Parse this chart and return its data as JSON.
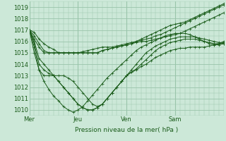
{
  "bg_color": "#cce8d8",
  "grid_color": "#99c4aa",
  "line_color": "#1a5c1a",
  "xlabel": "Pression niveau de la mer( hPa )",
  "xtick_labels": [
    "Mer",
    "Jeu",
    "Ven",
    "Sam"
  ],
  "xtick_positions": [
    0,
    60,
    120,
    180
  ],
  "xlim": [
    0,
    240
  ],
  "ylim": [
    1009.5,
    1019.5
  ],
  "yticks": [
    1010,
    1011,
    1012,
    1013,
    1014,
    1015,
    1016,
    1017,
    1018,
    1019
  ],
  "series": [
    {
      "x": [
        0,
        6,
        12,
        18,
        24,
        30,
        36,
        42,
        48,
        54,
        60,
        66,
        72,
        78,
        84,
        90,
        96,
        102,
        108,
        114,
        120,
        126,
        132,
        138,
        144,
        150,
        156,
        162,
        168,
        174,
        180,
        186,
        192,
        198,
        204,
        210,
        216,
        222,
        228,
        234,
        240
      ],
      "y": [
        1017.0,
        1016.5,
        1015.8,
        1015.2,
        1015.0,
        1015.0,
        1015.0,
        1015.0,
        1015.0,
        1015.0,
        1015.0,
        1015.1,
        1015.2,
        1015.3,
        1015.4,
        1015.5,
        1015.5,
        1015.5,
        1015.6,
        1015.7,
        1015.8,
        1015.9,
        1016.0,
        1016.1,
        1016.2,
        1016.3,
        1016.5,
        1016.6,
        1016.8,
        1017.0,
        1017.2,
        1017.4,
        1017.6,
        1017.8,
        1018.0,
        1018.2,
        1018.4,
        1018.6,
        1018.8,
        1019.0,
        1019.2
      ]
    },
    {
      "x": [
        0,
        6,
        12,
        18,
        24,
        30,
        36,
        42,
        48,
        54,
        60,
        66,
        72,
        78,
        84,
        90,
        96,
        102,
        108,
        114,
        120,
        126,
        132,
        138,
        144,
        150,
        156,
        162,
        168,
        174,
        180,
        186,
        192,
        198,
        204,
        210,
        216,
        222,
        228,
        234,
        240
      ],
      "y": [
        1017.0,
        1016.2,
        1015.5,
        1015.0,
        1015.0,
        1015.0,
        1015.0,
        1015.0,
        1015.0,
        1015.0,
        1015.0,
        1015.0,
        1015.0,
        1015.0,
        1015.0,
        1015.2,
        1015.3,
        1015.4,
        1015.5,
        1015.6,
        1015.7,
        1015.8,
        1015.9,
        1016.0,
        1016.0,
        1016.1,
        1016.2,
        1016.3,
        1016.4,
        1016.5,
        1016.6,
        1016.7,
        1016.9,
        1017.1,
        1017.3,
        1017.5,
        1017.7,
        1017.9,
        1018.1,
        1018.3,
        1018.5
      ]
    },
    {
      "x": [
        0,
        6,
        12,
        18,
        24,
        30,
        36,
        42,
        48,
        54,
        60,
        66,
        72,
        78,
        84,
        90,
        96,
        102,
        108,
        114,
        120,
        126,
        132,
        138,
        144,
        150,
        156,
        162,
        168,
        174,
        180,
        186,
        192,
        198,
        204,
        210,
        216,
        222,
        228,
        234,
        240
      ],
      "y": [
        1017.0,
        1016.0,
        1014.5,
        1014.0,
        1013.5,
        1013.0,
        1012.5,
        1012.0,
        1011.5,
        1011.0,
        1010.5,
        1010.2,
        1010.0,
        1010.0,
        1010.2,
        1010.5,
        1011.0,
        1011.5,
        1012.0,
        1012.5,
        1013.0,
        1013.5,
        1014.0,
        1014.5,
        1015.0,
        1015.3,
        1015.6,
        1015.8,
        1016.0,
        1016.2,
        1016.3,
        1016.4,
        1016.4,
        1016.4,
        1016.4,
        1016.3,
        1016.2,
        1016.1,
        1016.0,
        1015.9,
        1015.8
      ]
    },
    {
      "x": [
        0,
        6,
        12,
        18,
        24,
        30,
        36,
        42,
        48,
        54,
        60,
        66,
        72,
        78,
        84,
        90,
        96,
        102,
        108,
        114,
        120,
        126,
        132,
        138,
        144,
        150,
        156,
        162,
        168,
        174,
        180,
        186,
        192,
        198,
        204,
        210,
        216,
        222,
        228,
        234,
        240
      ],
      "y": [
        1017.0,
        1015.5,
        1013.5,
        1012.5,
        1011.8,
        1011.2,
        1010.8,
        1010.3,
        1010.0,
        1009.8,
        1010.0,
        1010.3,
        1010.8,
        1011.3,
        1011.8,
        1012.3,
        1012.8,
        1013.2,
        1013.6,
        1014.0,
        1014.4,
        1014.8,
        1015.2,
        1015.5,
        1015.7,
        1015.9,
        1016.1,
        1016.3,
        1016.5,
        1016.6,
        1016.7,
        1016.7,
        1016.7,
        1016.6,
        1016.4,
        1016.2,
        1016.0,
        1015.8,
        1015.7,
        1015.7,
        1015.8
      ]
    },
    {
      "x": [
        0,
        6,
        12,
        18,
        24,
        30,
        36,
        42,
        48,
        54,
        60,
        66,
        72,
        78,
        84,
        90,
        96,
        102,
        108,
        114,
        120,
        126,
        132,
        138,
        144,
        150,
        156,
        162,
        168,
        174,
        180,
        186,
        192,
        198,
        204,
        210,
        216,
        222,
        228,
        234,
        240
      ],
      "y": [
        1017.0,
        1015.0,
        1013.5,
        1013.0,
        1013.0,
        1013.0,
        1013.0,
        1013.0,
        1012.8,
        1012.5,
        1012.0,
        1011.5,
        1011.0,
        1010.5,
        1010.3,
        1010.5,
        1011.0,
        1011.5,
        1012.0,
        1012.5,
        1013.0,
        1013.3,
        1013.5,
        1013.8,
        1014.0,
        1014.3,
        1014.6,
        1014.8,
        1015.0,
        1015.2,
        1015.3,
        1015.4,
        1015.4,
        1015.5,
        1015.5,
        1015.5,
        1015.5,
        1015.6,
        1015.7,
        1015.8,
        1016.0
      ]
    },
    {
      "x": [
        0,
        6,
        12,
        18,
        24,
        30,
        36,
        42,
        48,
        54,
        60,
        66,
        72,
        78,
        84,
        90,
        96,
        102,
        108,
        114,
        120,
        126,
        132,
        138,
        144,
        150,
        156,
        162,
        168,
        174,
        180,
        186,
        192,
        198,
        204,
        210,
        216,
        222,
        228,
        234,
        240
      ],
      "y": [
        1017.0,
        1015.8,
        1014.0,
        1013.5,
        1013.2,
        1013.0,
        1012.5,
        1012.0,
        1011.5,
        1011.0,
        1010.5,
        1010.2,
        1010.0,
        1010.0,
        1010.2,
        1010.5,
        1011.0,
        1011.5,
        1012.0,
        1012.5,
        1013.0,
        1013.3,
        1013.6,
        1014.0,
        1014.4,
        1014.8,
        1015.2,
        1015.5,
        1015.7,
        1015.9,
        1016.0,
        1016.1,
        1016.2,
        1016.2,
        1016.2,
        1016.1,
        1016.0,
        1015.9,
        1015.8,
        1015.8,
        1015.9
      ]
    },
    {
      "x": [
        0,
        6,
        12,
        18,
        24,
        30,
        36,
        42,
        48,
        54,
        60,
        66,
        72,
        78,
        84,
        90,
        96,
        102,
        108,
        114,
        120,
        126,
        132,
        138,
        144,
        150,
        156,
        162,
        168,
        174,
        180,
        186,
        192,
        198,
        204,
        210,
        216,
        222,
        228,
        234,
        240
      ],
      "y": [
        1017.0,
        1016.8,
        1016.2,
        1015.8,
        1015.5,
        1015.3,
        1015.0,
        1015.0,
        1015.0,
        1015.0,
        1015.0,
        1015.0,
        1015.0,
        1015.0,
        1015.0,
        1015.2,
        1015.3,
        1015.4,
        1015.5,
        1015.6,
        1015.7,
        1015.8,
        1016.0,
        1016.2,
        1016.4,
        1016.6,
        1016.8,
        1017.0,
        1017.2,
        1017.4,
        1017.5,
        1017.6,
        1017.7,
        1017.9,
        1018.1,
        1018.3,
        1018.5,
        1018.7,
        1018.9,
        1019.1,
        1019.3
      ]
    }
  ]
}
